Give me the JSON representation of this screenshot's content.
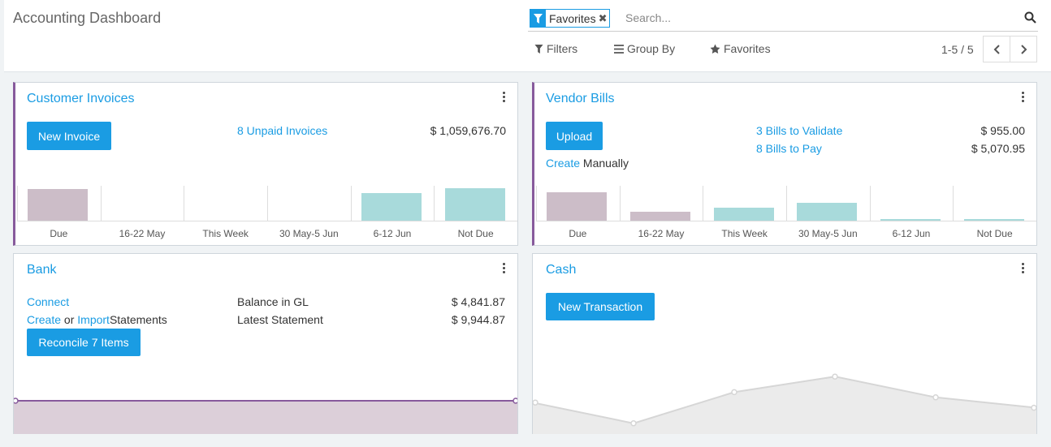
{
  "header": {
    "title": "Accounting Dashboard",
    "facet_label": "Favorites",
    "search_placeholder": "Search...",
    "filters_label": "Filters",
    "groupby_label": "Group By",
    "favorites_label": "Favorites",
    "pager": "1-5 / 5"
  },
  "colors": {
    "accent": "#1a9ce3",
    "past": "#ccbdc8",
    "future": "#a8dadb",
    "bank_line": "#875a9c"
  },
  "customer_invoices": {
    "title": "Customer Invoices",
    "button": "New Invoice",
    "unpaid_link": "8 Unpaid Invoices",
    "unpaid_amount": "$ 1,059,676.70",
    "chart": {
      "type": "bar",
      "categories": [
        "Due",
        "16-22 May",
        "This Week",
        "30 May-5 Jun",
        "6-12 Jun",
        "Not Due"
      ],
      "values": [
        0.93,
        0,
        0,
        0,
        0.8,
        0.96
      ],
      "kinds": [
        "past",
        "future",
        "future",
        "future",
        "future",
        "future"
      ]
    }
  },
  "vendor_bills": {
    "title": "Vendor Bills",
    "button": "Upload",
    "create_link": "Create",
    "create_rest": "Manually",
    "validate_link": "3 Bills to Validate",
    "validate_amount": "$ 955.00",
    "pay_link": "8 Bills to Pay",
    "pay_amount": "$ 5,070.95",
    "chart": {
      "type": "bar",
      "categories": [
        "Due",
        "16-22 May",
        "This Week",
        "30 May-5 Jun",
        "6-12 Jun",
        "Not Due"
      ],
      "values": [
        0.84,
        0.27,
        0.38,
        0.52,
        0.04,
        0.04
      ],
      "kinds": [
        "past",
        "past",
        "future",
        "future",
        "future",
        "future"
      ]
    }
  },
  "bank": {
    "title": "Bank",
    "connect_link": "Connect",
    "create_link": "Create",
    "or_text": "or",
    "import_link": "Import",
    "statements_text": "Statements",
    "button": "Reconcile 7 Items",
    "balance_label": "Balance in GL",
    "balance_amount": "$ 4,841.87",
    "latest_label": "Latest Statement",
    "latest_amount": "$ 9,944.87"
  },
  "cash": {
    "title": "Cash",
    "button": "New Transaction",
    "chart": {
      "type": "area",
      "values": [
        0.45,
        0.05,
        0.65,
        0.95,
        0.55,
        0.35
      ]
    }
  }
}
